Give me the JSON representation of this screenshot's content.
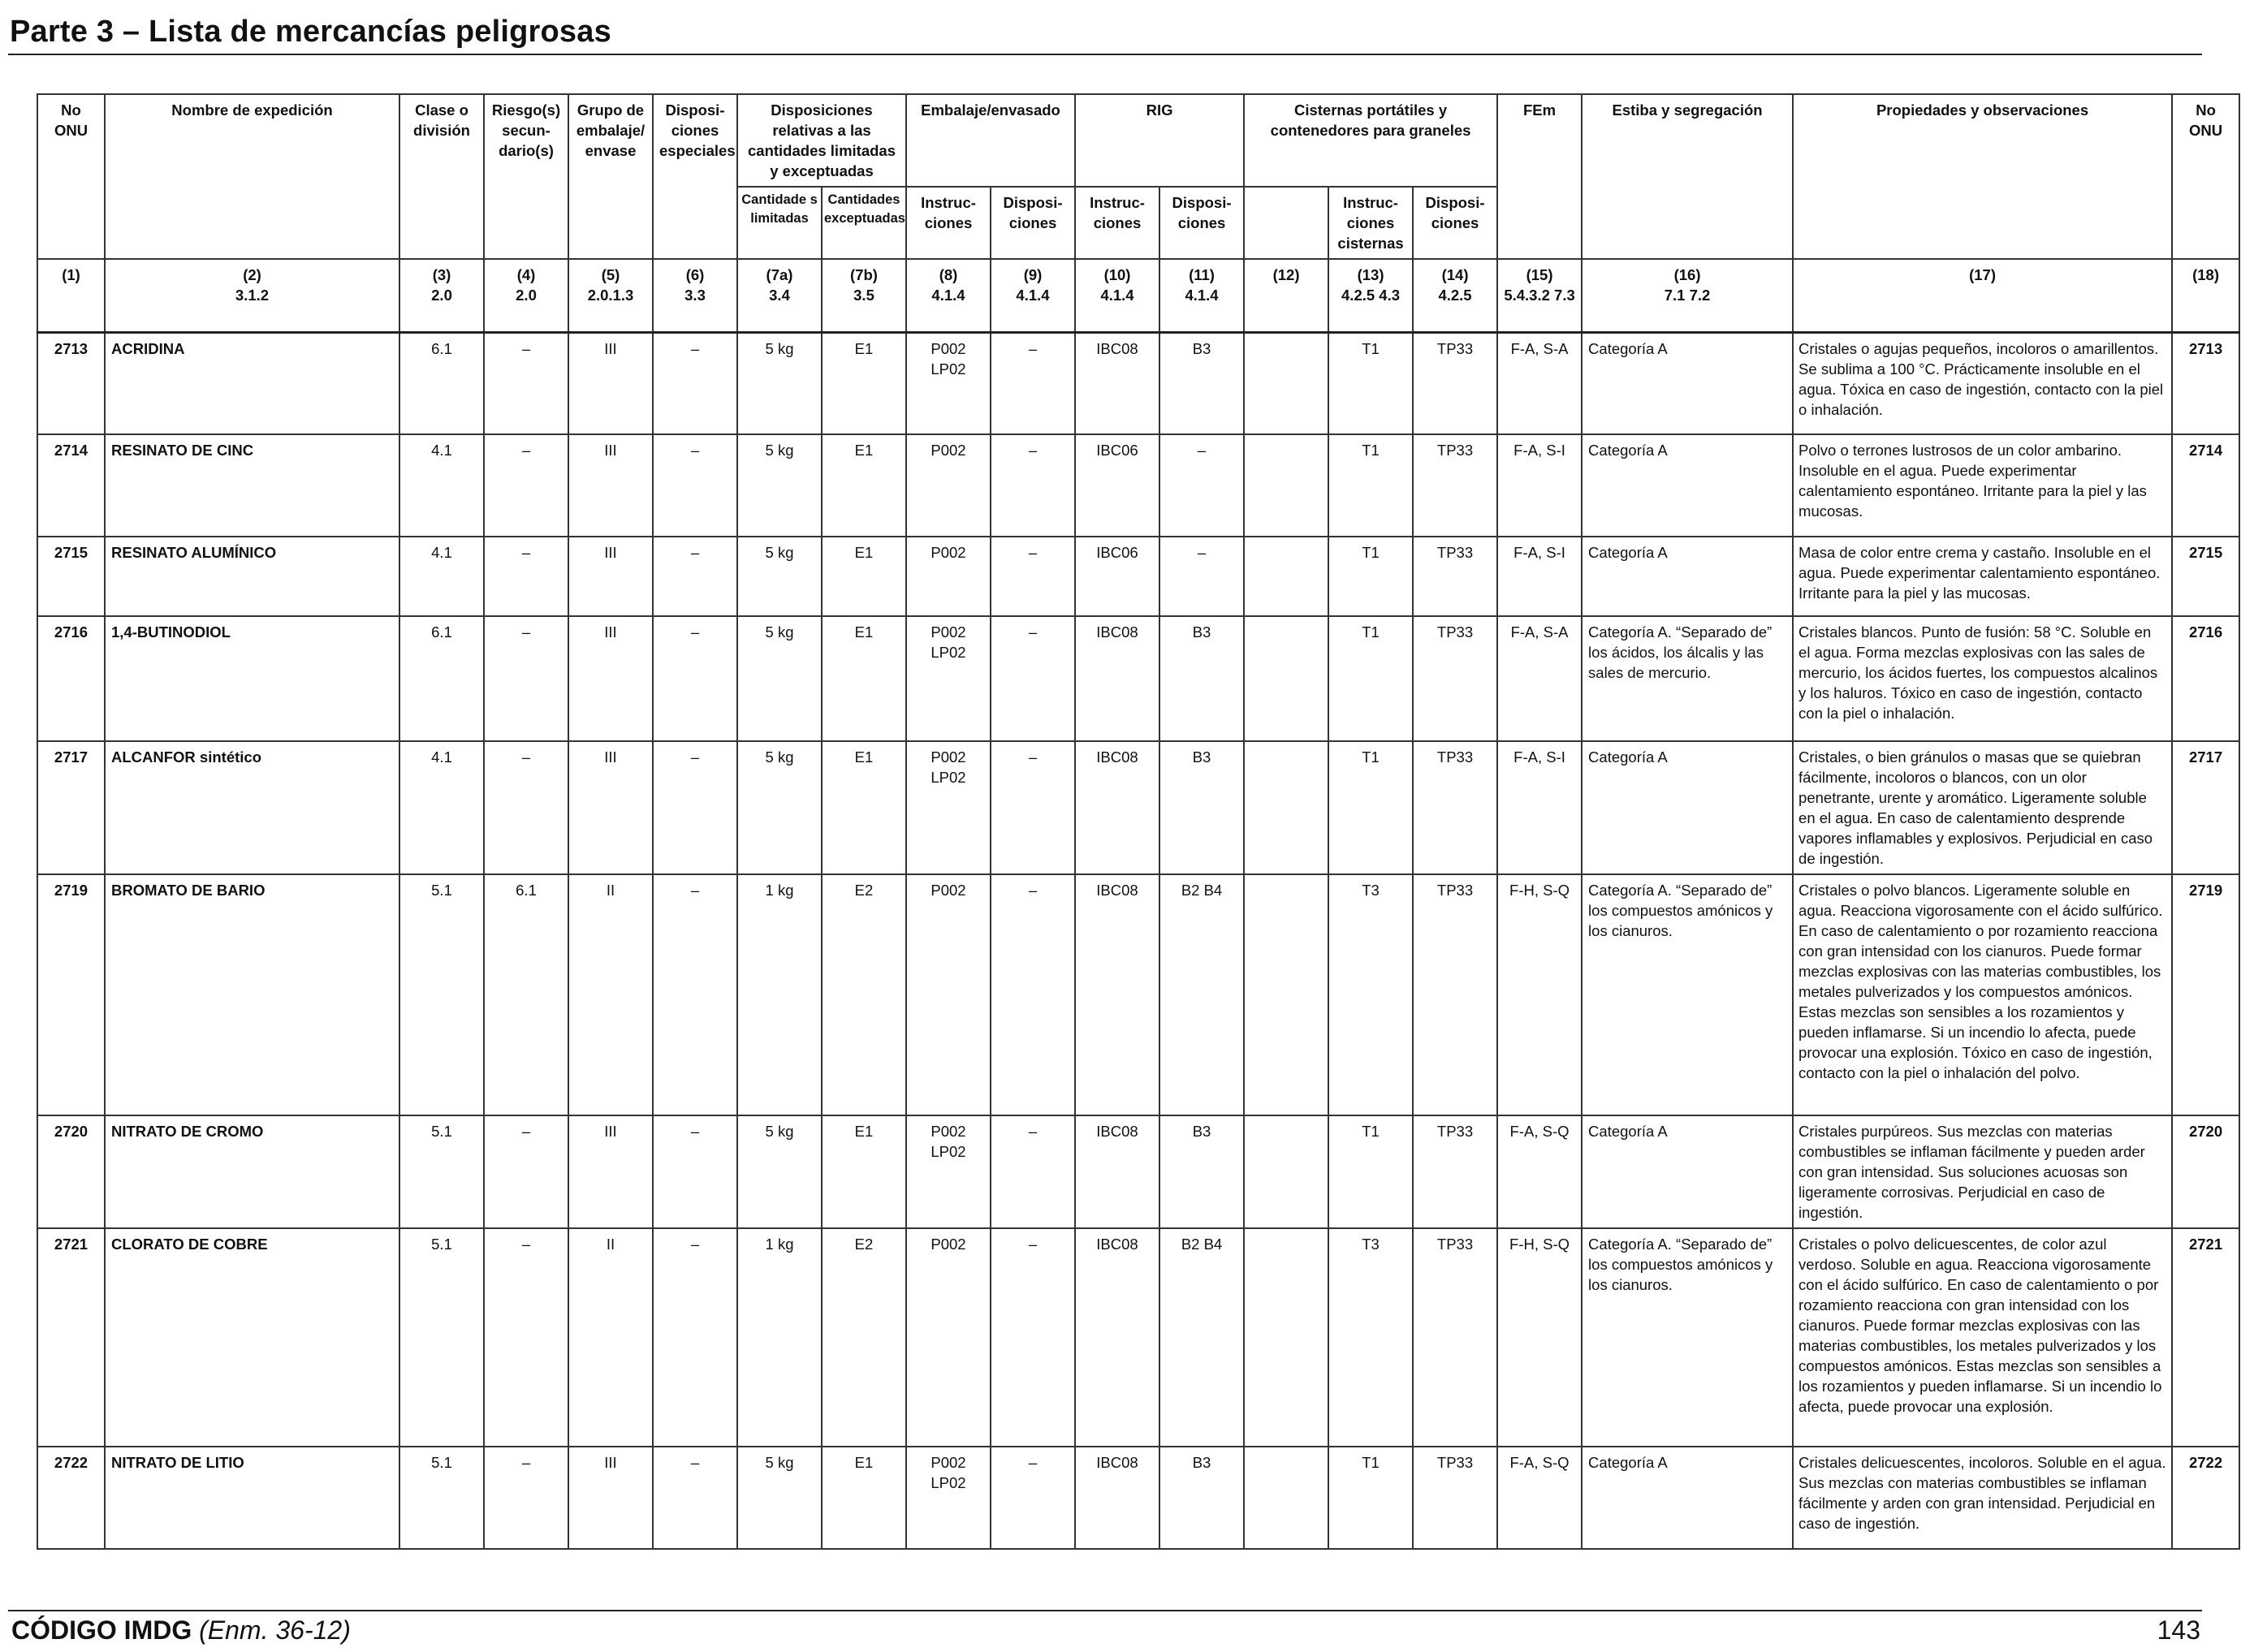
{
  "page_title": "Parte 3 – Lista de mercancías peligrosas",
  "header": {
    "no_onu": "No ONU",
    "nombre": "Nombre de expedición",
    "clase": "Clase o división",
    "riesgo": "Riesgo(s) secun- dario(s)",
    "grupo": "Grupo de embalaje/ envase",
    "dispos_esp": "Disposi- ciones especiales",
    "disp_rel": "Disposiciones relativas a las cantidades limitadas y exceptuadas",
    "cant_lim": "Cantidade s limitadas",
    "cant_exc": "Cantidades exceptuadas",
    "embalaje": "Embalaje/envasado",
    "emb_instr": "Instruc- ciones",
    "emb_disp": "Disposi- ciones",
    "rig": "RIG",
    "rig_instr": "Instruc- ciones",
    "rig_disp": "Disposi- ciones",
    "cisternas": "Cisternas portátiles y contenedores para graneles",
    "cis_instr": "Instruc- ciones cisternas",
    "cis_disp": "Disposi- ciones",
    "fem": "FEm",
    "estiba": "Estiba y segregación",
    "propiedades": "Propiedades y observaciones",
    "no_onu_right": "No ONU"
  },
  "colnums": [
    {
      "n": "(1)",
      "ref": ""
    },
    {
      "n": "(2)",
      "ref": "3.1.2"
    },
    {
      "n": "(3)",
      "ref": "2.0"
    },
    {
      "n": "(4)",
      "ref": "2.0"
    },
    {
      "n": "(5)",
      "ref": "2.0.1.3"
    },
    {
      "n": "(6)",
      "ref": "3.3"
    },
    {
      "n": "(7a)",
      "ref": "3.4"
    },
    {
      "n": "(7b)",
      "ref": "3.5"
    },
    {
      "n": "(8)",
      "ref": "4.1.4"
    },
    {
      "n": "(9)",
      "ref": "4.1.4"
    },
    {
      "n": "(10)",
      "ref": "4.1.4"
    },
    {
      "n": "(11)",
      "ref": "4.1.4"
    },
    {
      "n": "(12)",
      "ref": ""
    },
    {
      "n": "(13)",
      "ref": "4.2.5 4.3"
    },
    {
      "n": "(14)",
      "ref": "4.2.5"
    },
    {
      "n": "(15)",
      "ref": "5.4.3.2 7.3"
    },
    {
      "n": "(16)",
      "ref": "7.1 7.2"
    },
    {
      "n": "(17)",
      "ref": ""
    },
    {
      "n": "(18)",
      "ref": ""
    }
  ],
  "rows": [
    {
      "onu": "2713",
      "nombre": "ACRIDINA",
      "clase": "6.1",
      "riesgo": "–",
      "grupo": "III",
      "esp": "–",
      "lim": "5 kg",
      "exc": "E1",
      "emb_i": "P002 LP02",
      "emb_d": "–",
      "rig_i": "IBC08",
      "rig_d": "B3",
      "c12": "",
      "cis_i": "T1",
      "cis_d": "TP33",
      "fem": "F-A, S-A",
      "estiba": "Categoría A",
      "obs": "Cristales o agujas pequeños, incoloros o amarillentos. Se sublima a 100 °C. Prácticamente insoluble en el agua.  Tóxica en caso de ingestión, contacto con la piel o inhalación.",
      "onu2": "2713"
    },
    {
      "onu": "2714",
      "nombre": "RESINATO DE CINC",
      "clase": "4.1",
      "riesgo": "–",
      "grupo": "III",
      "esp": "–",
      "lim": "5 kg",
      "exc": "E1",
      "emb_i": "P002",
      "emb_d": "–",
      "rig_i": "IBC06",
      "rig_d": "–",
      "c12": "",
      "cis_i": "T1",
      "cis_d": "TP33",
      "fem": "F-A, S-I",
      "estiba": "Categoría A",
      "obs": "Polvo o terrones lustrosos de un color ambarino. Insoluble en el agua. Puede experimentar calentamiento espontáneo. Irritante para la piel y las mucosas.",
      "onu2": "2714"
    },
    {
      "onu": "2715",
      "nombre": "RESINATO ALUMÍNICO",
      "clase": "4.1",
      "riesgo": "–",
      "grupo": "III",
      "esp": "–",
      "lim": "5 kg",
      "exc": "E1",
      "emb_i": "P002",
      "emb_d": "–",
      "rig_i": "IBC06",
      "rig_d": "–",
      "c12": "",
      "cis_i": "T1",
      "cis_d": "TP33",
      "fem": "F-A, S-I",
      "estiba": "Categoría A",
      "obs": "Masa de color entre crema y castaño. Insoluble en el agua. Puede experimentar calentamiento espontáneo. Irritante para la piel y las mucosas.",
      "onu2": "2715"
    },
    {
      "onu": "2716",
      "nombre": "1,4-BUTINODIOL",
      "clase": "6.1",
      "riesgo": "–",
      "grupo": "III",
      "esp": "–",
      "lim": "5 kg",
      "exc": "E1",
      "emb_i": "P002 LP02",
      "emb_d": "–",
      "rig_i": "IBC08",
      "rig_d": "B3",
      "c12": "",
      "cis_i": "T1",
      "cis_d": "TP33",
      "fem": "F-A, S-A",
      "estiba": "Categoría A. “Separado de” los ácidos, los álcalis y las sales de mercurio.",
      "obs": "Cristales blancos. Punto de fusión: 58 °C. Soluble en el agua. Forma mezclas explosivas con las sales de mercurio, los ácidos fuertes, los compuestos alcalinos y los haluros. Tóxico en caso de ingestión, contacto con la piel o inhalación.",
      "onu2": "2716"
    },
    {
      "onu": "2717",
      "nombre": "ALCANFOR sintético",
      "clase": "4.1",
      "riesgo": "–",
      "grupo": "III",
      "esp": "–",
      "lim": "5 kg",
      "exc": "E1",
      "emb_i": "P002 LP02",
      "emb_d": "–",
      "rig_i": "IBC08",
      "rig_d": "B3",
      "c12": "",
      "cis_i": "T1",
      "cis_d": "TP33",
      "fem": "F-A, S-I",
      "estiba": "Categoría A",
      "obs": "Cristales, o bien gránulos o masas que se quiebran fácilmente, incoloros o blancos, con un olor penetrante, urente y aromático. Ligeramente soluble en el agua. En caso de calentamiento desprende vapores inflamables y explosivos. Perjudicial en caso de ingestión.",
      "onu2": "2717"
    },
    {
      "onu": "2719",
      "nombre": "BROMATO DE BARIO",
      "clase": "5.1",
      "riesgo": "6.1",
      "grupo": "II",
      "esp": "–",
      "lim": "1 kg",
      "exc": "E2",
      "emb_i": "P002",
      "emb_d": "–",
      "rig_i": "IBC08",
      "rig_d": "B2 B4",
      "c12": "",
      "cis_i": "T3",
      "cis_d": "TP33",
      "fem": "F-H, S-Q",
      "estiba": "Categoría A. “Separado de” los compuestos amónicos y los cianuros.",
      "obs": "Cristales o polvo blancos. Ligeramente soluble en agua. Reacciona vigorosamente con el ácido sulfúrico. En caso de calentamiento o por rozamiento reacciona con gran intensidad con los cianuros. Puede formar mezclas explosivas con las materias combustibles, los metales pulverizados y los compuestos amónicos. Estas mezclas son sensibles a los rozamientos y pueden inflamarse. Si un incendio lo afecta, puede provocar una explosión. Tóxico en caso de ingestión, contacto con la piel o inhalación del polvo.",
      "onu2": "2719"
    },
    {
      "onu": "2720",
      "nombre": "NITRATO DE CROMO",
      "clase": "5.1",
      "riesgo": "–",
      "grupo": "III",
      "esp": "–",
      "lim": "5 kg",
      "exc": "E1",
      "emb_i": "P002 LP02",
      "emb_d": "–",
      "rig_i": "IBC08",
      "rig_d": "B3",
      "c12": "",
      "cis_i": "T1",
      "cis_d": "TP33",
      "fem": "F-A, S-Q",
      "estiba": "Categoría A",
      "obs": "Cristales purpúreos. Sus mezclas con materias combustibles se inflaman fácilmente y pueden arder con gran intensidad. Sus soluciones acuosas son ligeramente corrosivas. Perjudicial en caso de ingestión.",
      "onu2": "2720"
    },
    {
      "onu": "2721",
      "nombre": "CLORATO DE COBRE",
      "clase": "5.1",
      "riesgo": "–",
      "grupo": "II",
      "esp": "–",
      "lim": "1 kg",
      "exc": "E2",
      "emb_i": "P002",
      "emb_d": "–",
      "rig_i": "IBC08",
      "rig_d": "B2 B4",
      "c12": "",
      "cis_i": "T3",
      "cis_d": "TP33",
      "fem": "F-H, S-Q",
      "estiba": "Categoría A. “Separado de” los compuestos amónicos y los cianuros.",
      "obs": "Cristales o polvo delicuescentes, de color azul verdoso. Soluble en agua. Reacciona vigorosamente con el ácido sulfúrico. En caso de calentamiento o por rozamiento reacciona con gran intensidad con los cianuros. Puede formar mezclas explosivas con las materias combustibles, los metales pulverizados y los compuestos amónicos. Estas mezclas son sensibles a los rozamientos y pueden inflamarse. Si un incendio lo afecta, puede provocar una explosión.",
      "onu2": "2721"
    },
    {
      "onu": "2722",
      "nombre": "NITRATO DE LITIO",
      "clase": "5.1",
      "riesgo": "–",
      "grupo": "III",
      "esp": "–",
      "lim": "5 kg",
      "exc": "E1",
      "emb_i": "P002 LP02",
      "emb_d": "–",
      "rig_i": "IBC08",
      "rig_d": "B3",
      "c12": "",
      "cis_i": "T1",
      "cis_d": "TP33",
      "fem": "F-A, S-Q",
      "estiba": "Categoría A",
      "obs": "Cristales delicuescentes, incoloros. Soluble en el agua. Sus mezclas con materias combustibles se inflaman fácilmente y arden con gran intensidad. Perjudicial en caso de ingestión.",
      "onu2": "2722"
    }
  ],
  "footer": {
    "code": "CÓDIGO IMDG",
    "amendment": "(Enm. 36-12)",
    "page_number": "143"
  }
}
